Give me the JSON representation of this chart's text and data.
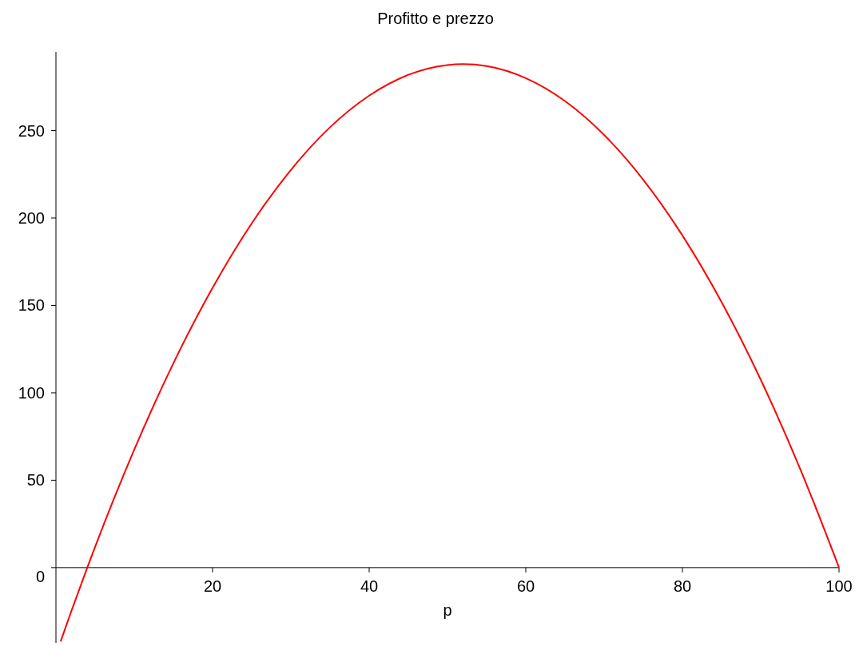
{
  "chart_data": {
    "type": "line",
    "title": "Profitto e prezzo",
    "xlabel": "p",
    "x": [
      0.6,
      2,
      4,
      5,
      10,
      15,
      20,
      25,
      30,
      35,
      40,
      45,
      50,
      52,
      55,
      60,
      65,
      70,
      75,
      80,
      85,
      90,
      95,
      100
    ],
    "series": [
      {
        "color": "#ff0000",
        "values": [
          -42.2,
          -24.5,
          0,
          11.9,
          67.5,
          116.9,
          160,
          196.9,
          227.5,
          251.9,
          270,
          281.9,
          287.5,
          288,
          286.9,
          280,
          266.9,
          247.5,
          221.9,
          190,
          151.9,
          107.5,
          56.9,
          0
        ]
      }
    ],
    "xlim": [
      0,
      100
    ],
    "ylim": [
      -43,
      295
    ],
    "xticks": [
      20,
      40,
      60,
      80,
      100
    ],
    "yticks": [
      0,
      50,
      100,
      150,
      200,
      250
    ],
    "grid": false,
    "marker": "none",
    "line_style": "solid"
  }
}
